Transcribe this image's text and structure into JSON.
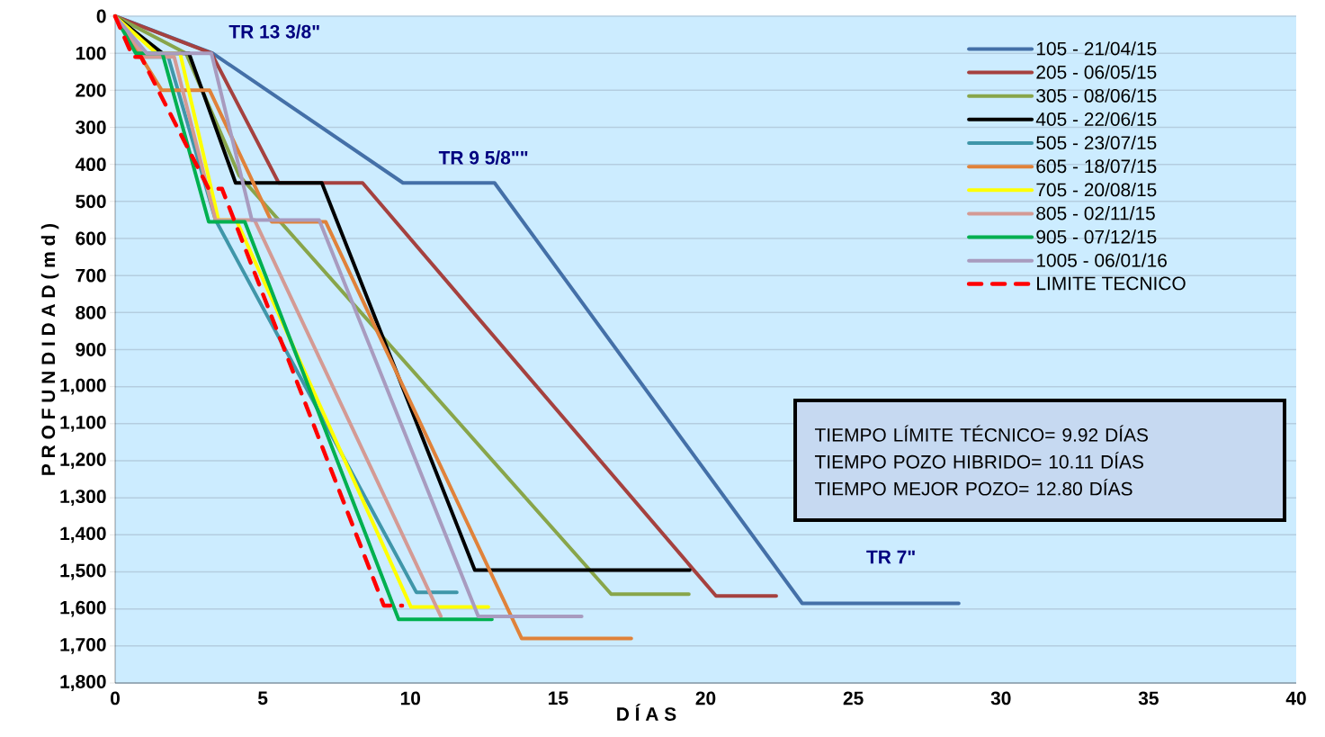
{
  "chart_data": {
    "type": "line",
    "xlabel": "D Í A S",
    "ylabel": "P R O F U N D I D A D   ( m d )",
    "xlim": [
      0,
      40
    ],
    "xticks": [
      0,
      5,
      10,
      15,
      20,
      25,
      30,
      35,
      40
    ],
    "ylim": [
      1800,
      0
    ],
    "yticks": [
      0,
      100,
      200,
      300,
      400,
      500,
      600,
      700,
      800,
      900,
      {
        "value": 1000,
        "label": "1,000"
      },
      {
        "value": 1100,
        "label": "1,100"
      },
      {
        "value": 1200,
        "label": "1,200"
      },
      {
        "value": 1300,
        "label": "1,300"
      },
      {
        "value": 1400,
        "label": "1,400"
      },
      {
        "value": 1500,
        "label": "1,500"
      },
      {
        "value": 1600,
        "label": "1,600"
      },
      {
        "value": 1700,
        "label": "1,700"
      },
      {
        "value": 1800,
        "label": "1,800"
      }
    ],
    "grid": "y",
    "legend": "top right",
    "series": [
      {
        "name": "105 - 21/04/15",
        "color": "#4470a8",
        "x": [
          0,
          3.3,
          9.75,
          12.85,
          23.27,
          28.57
        ],
        "values": [
          0,
          100,
          450,
          450,
          1585,
          1585
        ]
      },
      {
        "name": "205 - 06/05/15",
        "color": "#a5413f",
        "x": [
          0,
          3.26,
          5.54,
          8.38,
          20.35,
          22.39
        ],
        "values": [
          0,
          100,
          450,
          450,
          1565,
          1565
        ]
      },
      {
        "name": "305 - 08/06/15",
        "color": "#88a54a",
        "x": [
          0,
          2.4,
          4.2,
          16.8,
          19.43
        ],
        "values": [
          0,
          100,
          430,
          1560,
          1560
        ]
      },
      {
        "name": "405 - 22/06/15",
        "color": "#000000",
        "x": [
          0,
          1.6,
          2.5,
          4.08,
          7.0,
          12.18,
          19.46
        ],
        "values": [
          0,
          100,
          100,
          450,
          450,
          1495,
          1495
        ]
      },
      {
        "name": "505 - 23/07/15",
        "color": "#3f96a9",
        "x": [
          0,
          0.8,
          1.8,
          3.4,
          10.2,
          11.57
        ],
        "values": [
          0,
          110,
          110,
          550,
          1555,
          1555
        ]
      },
      {
        "name": "605 - 18/07/15",
        "color": "#e0823a",
        "x": [
          0,
          0.8,
          1.58,
          3.2,
          5.3,
          7.13,
          13.77,
          17.48
        ],
        "values": [
          0,
          100,
          200,
          200,
          555,
          555,
          1680,
          1680
        ]
      },
      {
        "name": "705 - 20/08/15",
        "color": "#ffff00",
        "x": [
          0,
          1.4,
          2.2,
          3.5,
          4.1,
          10.02,
          12.64
        ],
        "values": [
          0,
          100,
          100,
          550,
          550,
          1595,
          1595
        ]
      },
      {
        "name": "805 - 02/11/15",
        "color": "#d49a94",
        "x": [
          0,
          1.0,
          2.0,
          3.4,
          4.72,
          11.03
        ],
        "values": [
          0,
          110,
          110,
          550,
          550,
          1620
        ]
      },
      {
        "name": "905 - 07/12/15",
        "color": "#00b050",
        "x": [
          0,
          0.7,
          1.6,
          3.17,
          4.39,
          9.6,
          12.76
        ],
        "values": [
          0,
          100,
          100,
          555,
          555,
          1628,
          1628
        ]
      },
      {
        "name": "1005 - 06/01/16",
        "color": "#a89bbf",
        "x": [
          0,
          1.07,
          3.26,
          4.63,
          6.91,
          12.3,
          15.8
        ],
        "values": [
          0,
          100,
          100,
          550,
          550,
          1620,
          1620
        ]
      },
      {
        "name": "LIMITE TECNICO",
        "color": "#ff0000",
        "line_style": "dashed",
        "x": [
          0,
          0.6,
          0.88,
          3.17,
          3.62,
          9.1,
          9.72
        ],
        "values": [
          0,
          110,
          110,
          466,
          466,
          1591,
          1591
        ]
      }
    ],
    "annotations": [
      "TR 13 3/8\"",
      "TR 9 5/8\"\"",
      "TR 7\"",
      "TIEMPO LÍMITE TÉCNICO= 9.92 DÍAS",
      "TIEMPO POZO HIBRIDO= 10.11 DÍAS",
      "TIEMPO MEJOR  POZO= 12.80 DÍAS"
    ]
  }
}
